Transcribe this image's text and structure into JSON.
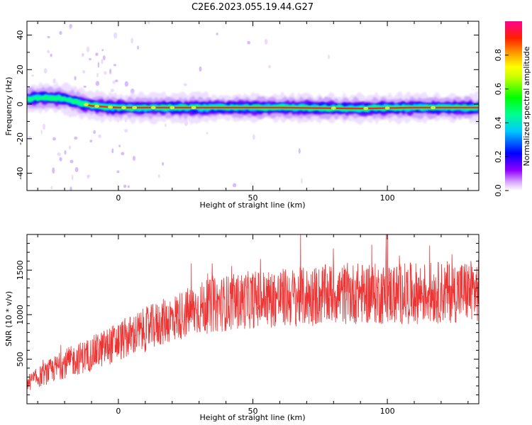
{
  "title": "C2E6.2023.055.19.44.G27",
  "chart_data": [
    {
      "type": "heatmap",
      "xlabel": "Height of straight line (km)",
      "ylabel": "Frequency (Hz)",
      "xlim": [
        -34,
        134
      ],
      "ylim": [
        -50,
        48
      ],
      "xticks": [
        0,
        50,
        100
      ],
      "yticks": [
        -40,
        -20,
        0,
        20,
        40
      ],
      "colorbar": {
        "label": "Normalized spectral amplitude",
        "range": [
          0,
          1
        ],
        "ticks": [
          0.0,
          0.2,
          0.4,
          0.6,
          0.8
        ],
        "colors": [
          "#ffffff",
          "#c080ff",
          "#7000ff",
          "#0000ff",
          "#00c0ff",
          "#00ffa0",
          "#00ff00",
          "#c0ff00",
          "#ffff00",
          "#ffa000",
          "#ff3000",
          "#ff0060",
          "#ff0090"
        ]
      },
      "signal_track": [
        {
          "x": -34,
          "freq": 3
        },
        {
          "x": -28,
          "freq": 4
        },
        {
          "x": -20,
          "freq": 3
        },
        {
          "x": -15,
          "freq": 1
        },
        {
          "x": -10,
          "freq": -1
        },
        {
          "x": 0,
          "freq": -2
        },
        {
          "x": 10,
          "freq": -2
        },
        {
          "x": 30,
          "freq": -2
        },
        {
          "x": 60,
          "freq": -2
        },
        {
          "x": 90,
          "freq": -2.5
        },
        {
          "x": 110,
          "freq": -2
        },
        {
          "x": 134,
          "freq": -2
        }
      ],
      "grid": false
    },
    {
      "type": "line",
      "xlabel": "Height of straight line (km)",
      "ylabel": "SNR (10 * v/v)",
      "xlim": [
        -34,
        134
      ],
      "ylim": [
        0,
        1900
      ],
      "xticks": [
        0,
        50,
        100
      ],
      "yticks": [
        500,
        1000,
        1500
      ],
      "color": "#ee3333",
      "trend": [
        {
          "x": -34,
          "mean": 230
        },
        {
          "x": -20,
          "mean": 450
        },
        {
          "x": -10,
          "mean": 560
        },
        {
          "x": 0,
          "mean": 700
        },
        {
          "x": 10,
          "mean": 830
        },
        {
          "x": 20,
          "mean": 960
        },
        {
          "x": 30,
          "mean": 1070
        },
        {
          "x": 40,
          "mean": 1130
        },
        {
          "x": 50,
          "mean": 1170
        },
        {
          "x": 60,
          "mean": 1190
        },
        {
          "x": 70,
          "mean": 1200
        },
        {
          "x": 80,
          "mean": 1230
        },
        {
          "x": 90,
          "mean": 1240
        },
        {
          "x": 100,
          "mean": 1230
        },
        {
          "x": 110,
          "mean": 1240
        },
        {
          "x": 120,
          "mean": 1250
        },
        {
          "x": 134,
          "mean": 1270
        }
      ],
      "grid": false
    }
  ]
}
